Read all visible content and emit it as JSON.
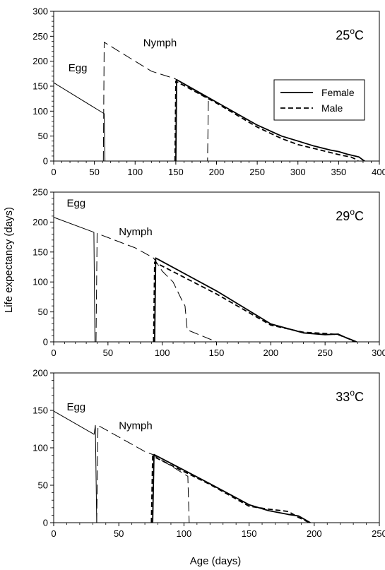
{
  "figure": {
    "ylabel": "Life expectancy (days)",
    "xlabel": "Age (days)"
  },
  "chart_data": [
    {
      "type": "line",
      "temperature_label": "25",
      "temperature_unit": "°C",
      "xlim": [
        0,
        400
      ],
      "ylim": [
        0,
        300
      ],
      "x_ticks": [
        0,
        50,
        100,
        150,
        200,
        250,
        300,
        350,
        400
      ],
      "y_ticks": [
        0,
        50,
        100,
        150,
        200,
        250,
        300
      ],
      "annotations": [
        {
          "text": "Egg",
          "x": 18,
          "y": 180
        },
        {
          "text": "Nymph",
          "x": 110,
          "y": 230
        }
      ],
      "legend": {
        "position": "right",
        "entries": [
          {
            "label": "Female",
            "style": "solid"
          },
          {
            "label": "Male",
            "style": "dashed"
          }
        ]
      },
      "series": [
        {
          "name": "Egg",
          "style": "solid-thin",
          "points": [
            [
              0,
              157
            ],
            [
              60,
              97
            ],
            [
              62,
              95
            ],
            [
              63,
              0
            ]
          ]
        },
        {
          "name": "Nymph",
          "style": "longdash-thin",
          "points": [
            [
              61,
              0
            ],
            [
              62,
              238
            ],
            [
              120,
              180
            ],
            [
              149,
              165
            ],
            [
              190,
              125
            ],
            [
              189,
              0
            ]
          ]
        },
        {
          "name": "Female",
          "style": "solid",
          "points": [
            [
              150,
              0
            ],
            [
              151,
              163
            ],
            [
              200,
              118
            ],
            [
              250,
              72
            ],
            [
              280,
              50
            ],
            [
              300,
              40
            ],
            [
              320,
              30
            ],
            [
              340,
              22
            ],
            [
              350,
              19
            ],
            [
              360,
              14
            ],
            [
              370,
              10
            ],
            [
              375,
              8
            ],
            [
              380,
              2
            ],
            [
              382,
              0
            ]
          ]
        },
        {
          "name": "Male",
          "style": "dashed",
          "points": [
            [
              149,
              0
            ],
            [
              150,
              160
            ],
            [
              200,
              116
            ],
            [
              250,
              68
            ],
            [
              280,
              45
            ],
            [
              300,
              33
            ],
            [
              320,
              25
            ],
            [
              340,
              17
            ],
            [
              355,
              11
            ],
            [
              365,
              8
            ],
            [
              372,
              3
            ],
            [
              374,
              0
            ]
          ]
        }
      ]
    },
    {
      "type": "line",
      "temperature_label": "29",
      "temperature_unit": "°C",
      "xlim": [
        0,
        300
      ],
      "ylim": [
        0,
        250
      ],
      "x_ticks": [
        0,
        50,
        100,
        150,
        200,
        250,
        300
      ],
      "y_ticks": [
        0,
        50,
        100,
        150,
        200,
        250
      ],
      "annotations": [
        {
          "text": "Egg",
          "x": 12,
          "y": 226
        },
        {
          "text": "Nymph",
          "x": 60,
          "y": 178
        }
      ],
      "series": [
        {
          "name": "Egg",
          "style": "solid-thin",
          "points": [
            [
              0,
              208
            ],
            [
              37,
              183
            ],
            [
              38,
              0
            ],
            [
              39,
              0
            ]
          ]
        },
        {
          "name": "Nymph",
          "style": "longdash-thin",
          "points": [
            [
              39,
              0
            ],
            [
              40,
              181
            ],
            [
              75,
              157
            ],
            [
              92,
              140
            ],
            [
              100,
              118
            ],
            [
              110,
              100
            ],
            [
              118,
              70
            ],
            [
              121,
              60
            ],
            [
              123,
              20
            ],
            [
              150,
              0
            ]
          ]
        },
        {
          "name": "Female",
          "style": "solid",
          "points": [
            [
              93,
              0
            ],
            [
              94,
              140
            ],
            [
              150,
              85
            ],
            [
              200,
              30
            ],
            [
              230,
              15
            ],
            [
              250,
              12
            ],
            [
              262,
              13
            ],
            [
              268,
              8
            ],
            [
              275,
              3
            ],
            [
              279,
              0
            ]
          ]
        },
        {
          "name": "Male",
          "style": "dashed",
          "points": [
            [
              92,
              0
            ],
            [
              93,
              133
            ],
            [
              150,
              80
            ],
            [
              200,
              28
            ],
            [
              230,
              16
            ],
            [
              250,
              14
            ],
            [
              262,
              12
            ],
            [
              272,
              5
            ],
            [
              277,
              0
            ]
          ]
        }
      ]
    },
    {
      "type": "line",
      "temperature_label": "33",
      "temperature_unit": "°C",
      "xlim": [
        0,
        250
      ],
      "ylim": [
        0,
        200
      ],
      "x_ticks": [
        0,
        50,
        100,
        150,
        200,
        250
      ],
      "y_ticks": [
        0,
        50,
        100,
        150,
        200
      ],
      "annotations": [
        {
          "text": "Egg",
          "x": 10,
          "y": 150
        },
        {
          "text": "Nymph",
          "x": 50,
          "y": 125
        }
      ],
      "series": [
        {
          "name": "Egg",
          "style": "solid-thin",
          "points": [
            [
              0,
              149
            ],
            [
              31,
              118
            ],
            [
              32,
              130
            ],
            [
              33,
              0
            ]
          ]
        },
        {
          "name": "Nymph",
          "style": "longdash-thin",
          "points": [
            [
              33,
              0
            ],
            [
              34,
              130
            ],
            [
              70,
              95
            ],
            [
              76,
              91
            ],
            [
              103,
              62
            ],
            [
              104,
              0
            ]
          ]
        },
        {
          "name": "Female",
          "style": "solid",
          "points": [
            [
              76,
              0
            ],
            [
              77,
              91
            ],
            [
              120,
              52
            ],
            [
              150,
              24
            ],
            [
              165,
              16
            ],
            [
              180,
              11
            ],
            [
              188,
              9
            ],
            [
              193,
              4
            ],
            [
              197,
              0
            ]
          ]
        },
        {
          "name": "Male",
          "style": "dashed",
          "points": [
            [
              75,
              0
            ],
            [
              76,
              89
            ],
            [
              120,
              51
            ],
            [
              150,
              22
            ],
            [
              165,
              18
            ],
            [
              180,
              15
            ],
            [
              188,
              7
            ],
            [
              194,
              2
            ],
            [
              196,
              0
            ]
          ]
        }
      ]
    }
  ]
}
